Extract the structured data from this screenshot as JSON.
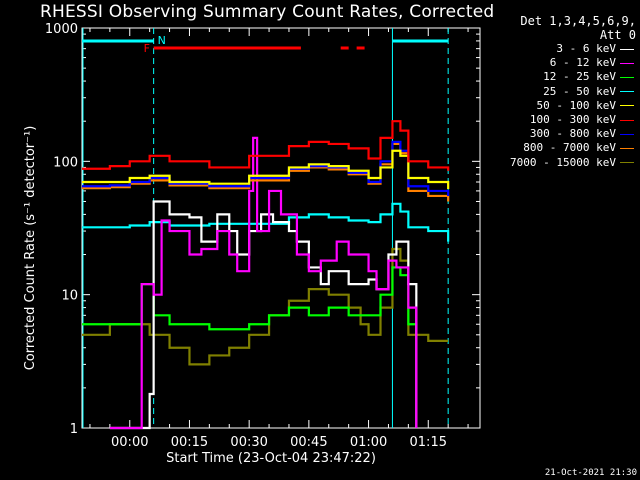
{
  "title": "RHESSI Observing Summary Count Rates, Corrected",
  "detector_info": [
    "Det 1,3,4,5,6,9,",
    "Att 0"
  ],
  "footer_timestamp": "21-Oct-2021 21:30",
  "flags": {
    "F": "F",
    "N": "N"
  },
  "colors": {
    "background": "#000000",
    "axes": "#ffffff",
    "cyan": "#00ffff",
    "flag_red": "#ff0000"
  },
  "chart_data": {
    "type": "line",
    "title": "RHESSI Observing Summary Count Rates, Corrected",
    "xlabel": "Start Time (23-Oct-04 23:47:22)",
    "ylabel": "Corrected Count Rate (s⁻¹ detector⁻¹)",
    "y_scale": "log",
    "ylim": [
      1,
      1000
    ],
    "xlim_minutes": [
      -12,
      30
    ],
    "x_ticks": [
      {
        "label": "00:00",
        "minutes": 0
      },
      {
        "label": "00:15",
        "minutes": 15
      },
      {
        "label": "00:30",
        "minutes": 30
      },
      {
        "label": "00:45",
        "minutes": 45
      },
      {
        "label": "01:00",
        "minutes": 60
      },
      {
        "label": "01:15",
        "minutes": 75
      }
    ],
    "y_ticks": [
      {
        "label": "1",
        "value": 1
      },
      {
        "label": "10",
        "value": 10
      },
      {
        "label": "100",
        "value": 100
      },
      {
        "label": "1000",
        "value": 1000
      }
    ],
    "series": [
      {
        "name": "3 - 6 keV",
        "color": "#ffffff",
        "values": [
          [
            -5,
            1
          ],
          [
            0,
            1
          ],
          [
            5,
            1.8
          ],
          [
            6,
            50
          ],
          [
            10,
            40
          ],
          [
            15,
            38
          ],
          [
            18,
            25
          ],
          [
            22,
            40
          ],
          [
            25,
            30
          ],
          [
            27,
            20
          ],
          [
            30,
            30
          ],
          [
            33,
            40
          ],
          [
            36,
            35
          ],
          [
            40,
            30
          ],
          [
            42,
            25
          ],
          [
            45,
            16
          ],
          [
            48,
            12
          ],
          [
            50,
            15
          ],
          [
            55,
            12
          ],
          [
            60,
            13
          ],
          [
            62,
            11
          ],
          [
            65,
            20
          ],
          [
            67,
            25
          ],
          [
            70,
            12
          ],
          [
            72,
            1
          ]
        ]
      },
      {
        "name": "6 - 12 keV",
        "color": "#ff00ff",
        "values": [
          [
            -5,
            1
          ],
          [
            2,
            1
          ],
          [
            3,
            12
          ],
          [
            6,
            10
          ],
          [
            8,
            36
          ],
          [
            10,
            30
          ],
          [
            13,
            30
          ],
          [
            15,
            20
          ],
          [
            18,
            22
          ],
          [
            22,
            30
          ],
          [
            25,
            20
          ],
          [
            27,
            15
          ],
          [
            30,
            60
          ],
          [
            31,
            150
          ],
          [
            32,
            30
          ],
          [
            35,
            60
          ],
          [
            38,
            40
          ],
          [
            42,
            20
          ],
          [
            45,
            15
          ],
          [
            48,
            18
          ],
          [
            52,
            25
          ],
          [
            55,
            20
          ],
          [
            60,
            15
          ],
          [
            62,
            11
          ],
          [
            65,
            18
          ],
          [
            67,
            16
          ],
          [
            70,
            8
          ],
          [
            72,
            1
          ]
        ]
      },
      {
        "name": "12 - 25 keV",
        "color": "#00ff00",
        "values": [
          [
            -12,
            6
          ],
          [
            -5,
            6
          ],
          [
            0,
            6
          ],
          [
            3,
            12
          ],
          [
            6,
            7
          ],
          [
            10,
            6
          ],
          [
            20,
            5.5
          ],
          [
            30,
            6
          ],
          [
            35,
            7
          ],
          [
            40,
            8
          ],
          [
            45,
            7
          ],
          [
            50,
            8
          ],
          [
            55,
            7
          ],
          [
            60,
            7
          ],
          [
            63,
            10
          ],
          [
            66,
            16
          ],
          [
            68,
            14
          ],
          [
            70,
            6
          ],
          [
            72,
            5
          ]
        ]
      },
      {
        "name": "25 - 50 keV",
        "color": "#00ffff",
        "values": [
          [
            -12,
            32
          ],
          [
            -5,
            32
          ],
          [
            0,
            33
          ],
          [
            5,
            35
          ],
          [
            10,
            33
          ],
          [
            20,
            34
          ],
          [
            30,
            34
          ],
          [
            40,
            38
          ],
          [
            45,
            40
          ],
          [
            50,
            38
          ],
          [
            55,
            36
          ],
          [
            60,
            35
          ],
          [
            63,
            40
          ],
          [
            66,
            48
          ],
          [
            68,
            42
          ],
          [
            70,
            32
          ],
          [
            75,
            30
          ],
          [
            80,
            25
          ]
        ]
      },
      {
        "name": "50 - 100 keV",
        "color": "#ffff00",
        "values": [
          [
            -12,
            70
          ],
          [
            -5,
            70
          ],
          [
            0,
            75
          ],
          [
            5,
            78
          ],
          [
            10,
            70
          ],
          [
            20,
            68
          ],
          [
            30,
            78
          ],
          [
            40,
            90
          ],
          [
            45,
            95
          ],
          [
            50,
            92
          ],
          [
            55,
            85
          ],
          [
            60,
            75
          ],
          [
            63,
            90
          ],
          [
            66,
            120
          ],
          [
            68,
            110
          ],
          [
            70,
            75
          ],
          [
            75,
            70
          ],
          [
            80,
            62
          ]
        ]
      },
      {
        "name": "100 - 300 keV",
        "color": "#ff0000",
        "values": [
          [
            -12,
            88
          ],
          [
            -5,
            92
          ],
          [
            0,
            100
          ],
          [
            5,
            110
          ],
          [
            10,
            100
          ],
          [
            20,
            90
          ],
          [
            30,
            110
          ],
          [
            40,
            130
          ],
          [
            45,
            140
          ],
          [
            50,
            135
          ],
          [
            55,
            125
          ],
          [
            60,
            105
          ],
          [
            63,
            150
          ],
          [
            66,
            200
          ],
          [
            68,
            170
          ],
          [
            70,
            100
          ],
          [
            75,
            90
          ],
          [
            80,
            85
          ]
        ]
      },
      {
        "name": "300 - 800 keV",
        "color": "#0000ff",
        "values": [
          [
            -12,
            65
          ],
          [
            -5,
            66
          ],
          [
            0,
            70
          ],
          [
            5,
            75
          ],
          [
            10,
            68
          ],
          [
            20,
            65
          ],
          [
            30,
            75
          ],
          [
            40,
            88
          ],
          [
            45,
            92
          ],
          [
            50,
            90
          ],
          [
            55,
            82
          ],
          [
            60,
            70
          ],
          [
            63,
            100
          ],
          [
            66,
            140
          ],
          [
            68,
            120
          ],
          [
            70,
            65
          ],
          [
            75,
            60
          ],
          [
            80,
            55
          ]
        ]
      },
      {
        "name": "800 - 7000 keV",
        "color": "#ff8000",
        "values": [
          [
            -12,
            63
          ],
          [
            -5,
            64
          ],
          [
            0,
            68
          ],
          [
            5,
            72
          ],
          [
            10,
            66
          ],
          [
            20,
            63
          ],
          [
            30,
            72
          ],
          [
            40,
            85
          ],
          [
            45,
            90
          ],
          [
            50,
            87
          ],
          [
            55,
            80
          ],
          [
            60,
            68
          ],
          [
            63,
            95
          ],
          [
            66,
            135
          ],
          [
            68,
            115
          ],
          [
            70,
            60
          ],
          [
            75,
            55
          ],
          [
            80,
            50
          ]
        ]
      },
      {
        "name": "7000 - 15000 keV",
        "color": "#808000",
        "values": [
          [
            -12,
            5
          ],
          [
            -5,
            6
          ],
          [
            0,
            6
          ],
          [
            5,
            5
          ],
          [
            10,
            4
          ],
          [
            15,
            3
          ],
          [
            20,
            3.5
          ],
          [
            25,
            4
          ],
          [
            30,
            5
          ],
          [
            35,
            7
          ],
          [
            40,
            9
          ],
          [
            45,
            11
          ],
          [
            50,
            10
          ],
          [
            55,
            8
          ],
          [
            58,
            6
          ],
          [
            60,
            5
          ],
          [
            63,
            8
          ],
          [
            66,
            22
          ],
          [
            68,
            18
          ],
          [
            70,
            5
          ],
          [
            75,
            4.5
          ],
          [
            80,
            4.5
          ]
        ]
      }
    ],
    "annotations": [
      {
        "text": "F",
        "color": "#ff0000"
      },
      {
        "text": "N",
        "color": "#00ffff"
      }
    ]
  }
}
